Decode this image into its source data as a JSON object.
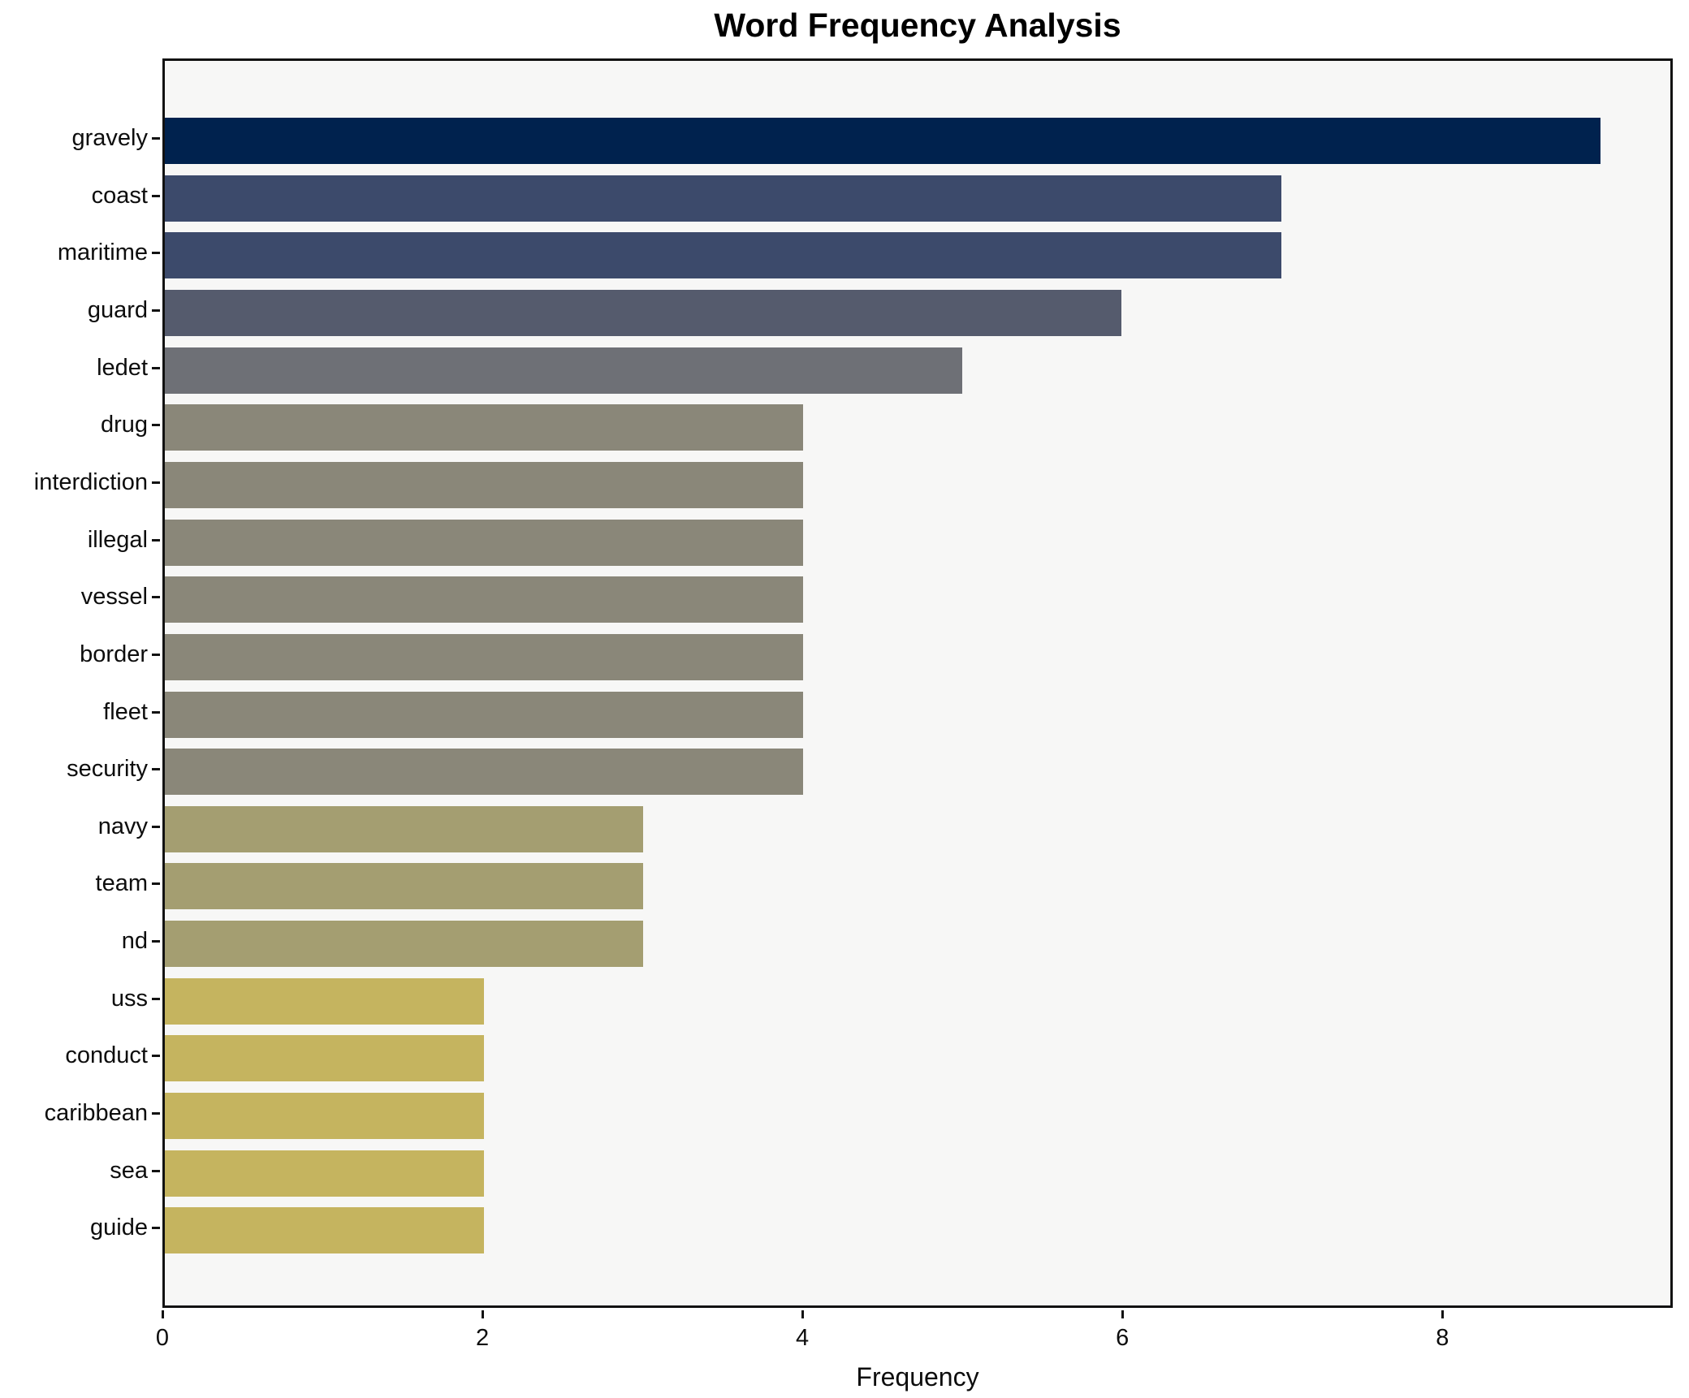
{
  "chart_data": {
    "type": "bar",
    "orientation": "horizontal",
    "title": "Word Frequency Analysis",
    "xlabel": "Frequency",
    "ylabel": "",
    "xlim": [
      0,
      9.44
    ],
    "xticks": [
      0,
      2,
      4,
      6,
      8
    ],
    "grid": false,
    "legend": null,
    "background_color": "#f7f7f6",
    "spine_color": "#121212",
    "categories": [
      "gravely",
      "coast",
      "maritime",
      "guard",
      "ledet",
      "drug",
      "interdiction",
      "illegal",
      "vessel",
      "border",
      "fleet",
      "security",
      "navy",
      "team",
      "nd",
      "uss",
      "conduct",
      "caribbean",
      "sea",
      "guide"
    ],
    "values": [
      9,
      7,
      7,
      6,
      5,
      4,
      4,
      4,
      4,
      4,
      4,
      4,
      3,
      3,
      3,
      2,
      2,
      2,
      2,
      2
    ],
    "bar_colors": [
      "#00224e",
      "#3c4a6b",
      "#3c4a6b",
      "#555b6d",
      "#6e7076",
      "#8a8779",
      "#8a8779",
      "#8a8779",
      "#8a8779",
      "#8a8779",
      "#8a8779",
      "#8a8779",
      "#a49e71",
      "#a49e71",
      "#a49e71",
      "#c5b45f",
      "#c5b45f",
      "#c5b45f",
      "#c5b45f",
      "#c5b45f"
    ]
  }
}
